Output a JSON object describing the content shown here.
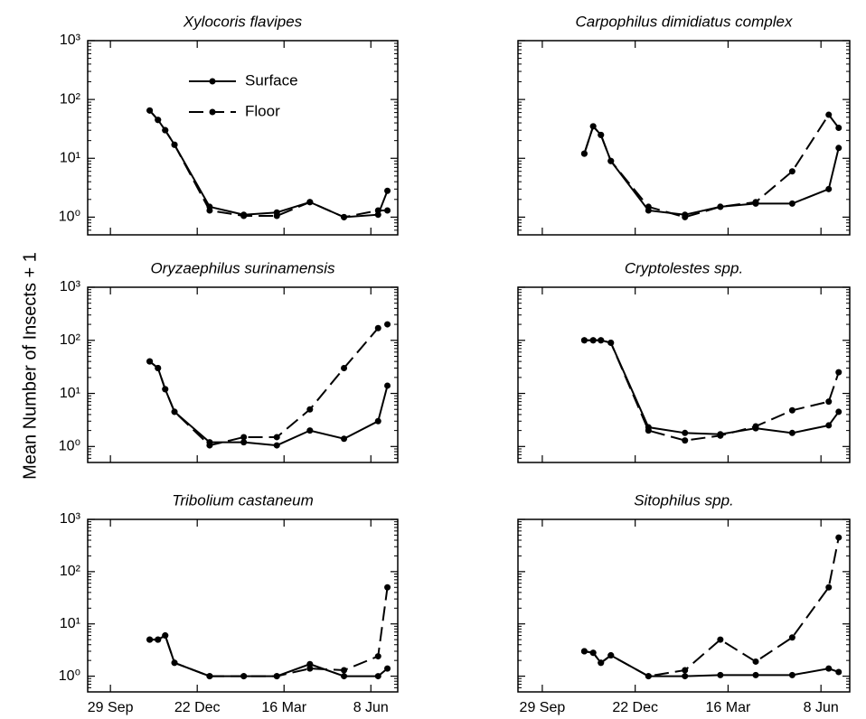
{
  "ylabel": "Mean Number of Insects + 1",
  "chart_data": [
    {
      "type": "line",
      "title": "Xylocoris flavipes",
      "log_y": true,
      "legend": "upper left",
      "x": [
        38,
        46,
        53,
        62,
        96,
        129,
        161,
        193,
        226,
        259,
        268
      ],
      "xlim": [
        -22,
        278
      ],
      "xticks": [
        0,
        84,
        168,
        252
      ],
      "ylim": [
        0.5,
        1000
      ],
      "yticks": [
        {
          "value": 1,
          "label": "10⁰"
        },
        {
          "value": 10,
          "label": "10¹"
        },
        {
          "value": 100,
          "label": "10²"
        },
        {
          "value": 1000,
          "label": "10³"
        }
      ],
      "series": [
        {
          "name": "Surface",
          "color": "#000000",
          "style": "solid",
          "values": [
            65,
            45,
            30,
            17,
            1.5,
            1.1,
            1.2,
            1.8,
            1.0,
            1.1,
            2.8
          ]
        },
        {
          "name": "Floor",
          "color": "#000000",
          "style": "dashed",
          "values": [
            65,
            45,
            30,
            17,
            1.3,
            1.05,
            1.05,
            1.8,
            1.0,
            1.3,
            1.3
          ]
        }
      ]
    },
    {
      "type": "line",
      "title": "Carpophilus dimidiatus complex",
      "log_y": true,
      "x": [
        38,
        46,
        53,
        62,
        96,
        129,
        161,
        193,
        226,
        259,
        268
      ],
      "xlim": [
        -22,
        278
      ],
      "xticks": [
        0,
        84,
        168,
        252
      ],
      "ylim": [
        0.5,
        1000
      ],
      "yticks": [
        1,
        10,
        100,
        1000
      ],
      "series": [
        {
          "color": "#000000",
          "style": "solid",
          "values": [
            12,
            35,
            25,
            9,
            1.3,
            1.1,
            1.5,
            1.7,
            1.7,
            3,
            15
          ]
        },
        {
          "color": "#000000",
          "style": "dashed",
          "values": [
            12,
            35,
            25,
            9,
            1.5,
            1.0,
            1.5,
            1.8,
            6,
            55,
            33
          ]
        }
      ]
    },
    {
      "type": "line",
      "title": "Oryzaephilus surinamensis",
      "log_y": true,
      "x": [
        38,
        46,
        53,
        62,
        96,
        129,
        161,
        193,
        226,
        259,
        268
      ],
      "xlim": [
        -22,
        278
      ],
      "xticks": [
        0,
        84,
        168,
        252
      ],
      "ylim": [
        0.5,
        1000
      ],
      "yticks": [
        {
          "value": 1,
          "label": "10⁰"
        },
        {
          "value": 10,
          "label": "10¹"
        },
        {
          "value": 100,
          "label": "10²"
        },
        {
          "value": 1000,
          "label": "10³"
        }
      ],
      "series": [
        {
          "color": "#000000",
          "style": "solid",
          "values": [
            40,
            30,
            12,
            4.5,
            1.2,
            1.2,
            1.05,
            2,
            1.4,
            3,
            14
          ]
        },
        {
          "color": "#000000",
          "style": "dashed",
          "values": [
            40,
            30,
            12,
            4.5,
            1.05,
            1.5,
            1.5,
            5,
            30,
            170,
            200
          ]
        }
      ]
    },
    {
      "type": "line",
      "title": "Cryptolestes spp.",
      "log_y": true,
      "x": [
        38,
        46,
        53,
        62,
        96,
        129,
        161,
        193,
        226,
        259,
        268
      ],
      "xlim": [
        -22,
        278
      ],
      "xticks": [
        0,
        84,
        168,
        252
      ],
      "ylim": [
        0.5,
        1000
      ],
      "yticks": [
        1,
        10,
        100,
        1000
      ],
      "series": [
        {
          "color": "#000000",
          "style": "solid",
          "values": [
            100,
            100,
            100,
            90,
            2.3,
            1.8,
            1.7,
            2.2,
            1.8,
            2.5,
            4.5
          ]
        },
        {
          "color": "#000000",
          "style": "dashed",
          "values": [
            100,
            100,
            100,
            90,
            2.0,
            1.3,
            1.6,
            2.4,
            4.8,
            7,
            25
          ]
        }
      ]
    },
    {
      "type": "line",
      "title": "Tribolium castaneum",
      "log_y": true,
      "x": [
        38,
        46,
        53,
        62,
        96,
        129,
        161,
        193,
        226,
        259,
        268
      ],
      "xlim": [
        -22,
        278
      ],
      "xticks": [
        {
          "value": 0,
          "label": "29 Sep"
        },
        {
          "value": 84,
          "label": "22 Dec"
        },
        {
          "value": 168,
          "label": "16 Mar"
        },
        {
          "value": 252,
          "label": "8 Jun"
        }
      ],
      "ylim": [
        0.5,
        1000
      ],
      "yticks": [
        {
          "value": 1,
          "label": "10⁰"
        },
        {
          "value": 10,
          "label": "10¹"
        },
        {
          "value": 100,
          "label": "10²"
        },
        {
          "value": 1000,
          "label": "10³"
        }
      ],
      "series": [
        {
          "color": "#000000",
          "style": "solid",
          "values": [
            5,
            5,
            6,
            1.8,
            1.0,
            1.0,
            1.0,
            1.7,
            1.0,
            1.0,
            1.4
          ]
        },
        {
          "color": "#000000",
          "style": "dashed",
          "values": [
            5,
            5,
            6,
            1.8,
            1.0,
            1.0,
            1.0,
            1.4,
            1.3,
            2.4,
            50
          ]
        }
      ]
    },
    {
      "type": "line",
      "title": "Sitophilus spp.",
      "log_y": true,
      "x": [
        38,
        46,
        53,
        62,
        96,
        129,
        161,
        193,
        226,
        259,
        268
      ],
      "xlim": [
        -22,
        278
      ],
      "xticks": [
        {
          "value": 0,
          "label": "29 Sep"
        },
        {
          "value": 84,
          "label": "22 Dec"
        },
        {
          "value": 168,
          "label": "16 Mar"
        },
        {
          "value": 252,
          "label": "8 Jun"
        }
      ],
      "ylim": [
        0.5,
        1000
      ],
      "yticks": [
        1,
        10,
        100,
        1000
      ],
      "series": [
        {
          "color": "#000000",
          "style": "solid",
          "values": [
            3,
            2.8,
            1.8,
            2.5,
            1.0,
            1.0,
            1.05,
            1.05,
            1.05,
            1.4,
            1.2
          ]
        },
        {
          "color": "#000000",
          "style": "dashed",
          "values": [
            3,
            2.8,
            1.8,
            2.5,
            1.0,
            1.3,
            5,
            1.9,
            5.5,
            50,
            450
          ]
        }
      ]
    }
  ]
}
